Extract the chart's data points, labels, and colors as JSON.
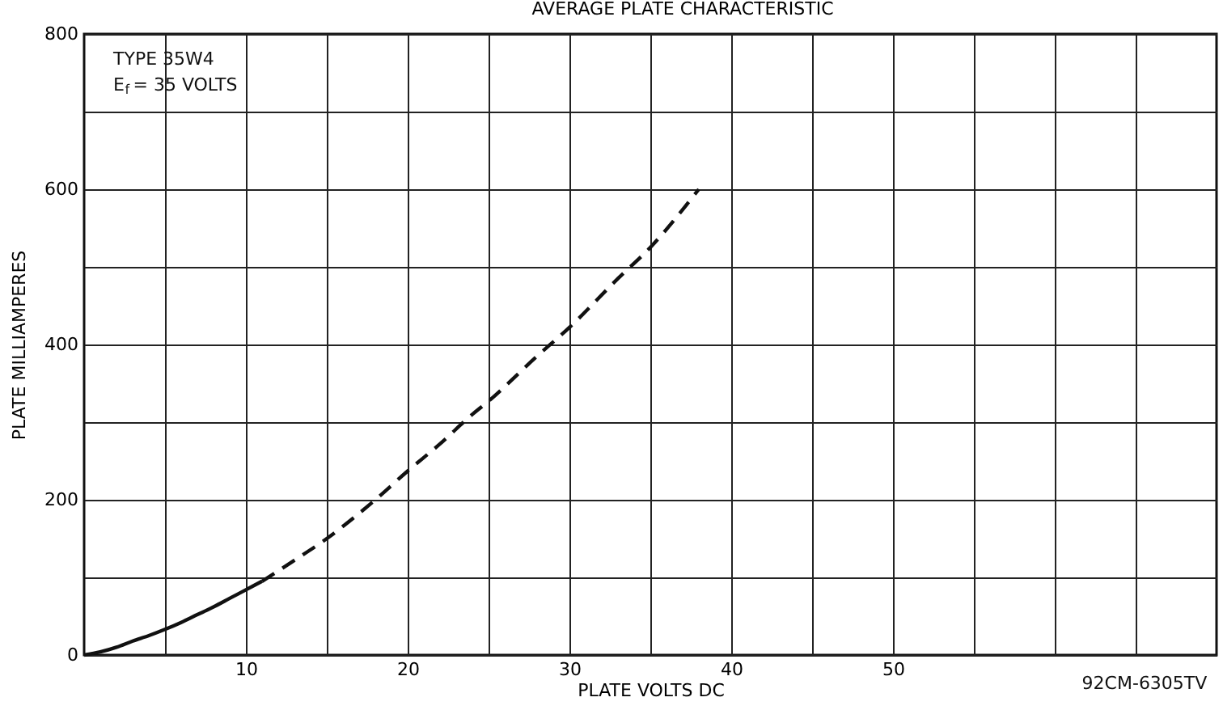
{
  "chart_data": {
    "type": "line",
    "title": "AVERAGE PLATE CHARACTERISTIC",
    "xlabel": "PLATE VOLTS DC",
    "ylabel": "PLATE MILLIAMPERES",
    "annotations": [
      "TYPE 35W4",
      "E$_{f}$ = 35 VOLTS",
      "92CM-6305TV"
    ],
    "xlim": [
      0,
      70
    ],
    "ylim": [
      0,
      800
    ],
    "xticks": [
      {
        "value": 5,
        "label": null
      },
      10,
      {
        "value": 15,
        "label": null
      },
      20,
      {
        "value": 25,
        "label": null
      },
      30,
      {
        "value": 35,
        "label": null
      },
      40,
      {
        "value": 45,
        "label": null
      },
      50,
      {
        "value": 55,
        "label": null
      },
      {
        "value": 60,
        "label": null
      },
      {
        "value": 65,
        "label": null
      }
    ],
    "yticks": [
      0,
      {
        "value": 100,
        "label": null
      },
      200,
      {
        "value": 300,
        "label": null
      },
      400,
      {
        "value": 500,
        "label": null
      },
      600,
      {
        "value": 700,
        "label": null
      },
      800
    ],
    "grid": true,
    "marker": "none",
    "series": [
      {
        "color": "#111111",
        "line_style": "solid",
        "x": [
          0,
          1,
          2,
          3,
          4,
          5,
          6,
          7,
          8,
          9,
          10,
          11
        ],
        "values": [
          0,
          4,
          10,
          18,
          25,
          33,
          42,
          52,
          62,
          73,
          84,
          95
        ]
      },
      {
        "color": "#111111",
        "line_style": "dashed",
        "x": [
          11,
          13,
          15,
          18,
          20,
          22,
          24,
          25,
          28,
          30,
          33,
          35,
          38
        ],
        "values": [
          95,
          122,
          150,
          200,
          237,
          272,
          310,
          327,
          385,
          422,
          485,
          525,
          600
        ]
      }
    ]
  }
}
